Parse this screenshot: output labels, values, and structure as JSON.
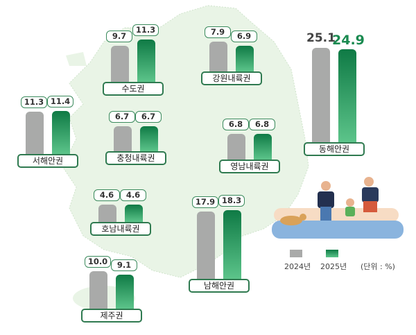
{
  "chart_data": {
    "type": "bar",
    "series": [
      {
        "name": "2024년",
        "color": "#a9aaa9"
      },
      {
        "name": "2025년",
        "color": "#1a8a50"
      }
    ],
    "unit": "(단위 : %)",
    "regions": [
      {
        "name": "수도권",
        "v2024": "9.7",
        "v2025": "11.3"
      },
      {
        "name": "강원내륙권",
        "v2024": "7.9",
        "v2025": "6.9"
      },
      {
        "name": "동해안권",
        "v2024": "25.1",
        "v2025": "24.9"
      },
      {
        "name": "서해안권",
        "v2024": "11.3",
        "v2025": "11.4"
      },
      {
        "name": "충청내륙권",
        "v2024": "6.7",
        "v2025": "6.7"
      },
      {
        "name": "영남내륙권",
        "v2024": "6.8",
        "v2025": "6.8"
      },
      {
        "name": "호남내륙권",
        "v2024": "4.6",
        "v2025": "4.6"
      },
      {
        "name": "남해안권",
        "v2024": "17.9",
        "v2025": "18.3"
      },
      {
        "name": "제주권",
        "v2024": "10.0",
        "v2025": "9.1"
      }
    ]
  }
}
